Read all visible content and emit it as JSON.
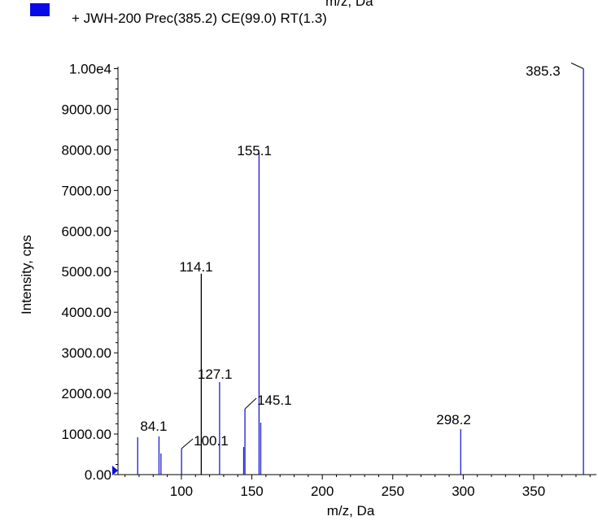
{
  "header": {
    "cut_top_text": "m/z, Da",
    "legend_label": "+ JWH-200 Prec(385.2) CE(99.0) RT(1.3)"
  },
  "colors": {
    "series": "#1c1cd0",
    "legend_swatch": "#0a0ae6",
    "axis": "#000000",
    "black_peak": "#000000",
    "marker": "#0a0ae6"
  },
  "chart_data": {
    "type": "bar",
    "title": "",
    "xlabel": "m/z, Da",
    "ylabel": "Intensity, cps",
    "xlim": [
      55,
      391
    ],
    "ylim": [
      0,
      10150
    ],
    "x_ticks": [
      {
        "value": 100,
        "label": "100"
      },
      {
        "value": 150,
        "label": "150"
      },
      {
        "value": 200,
        "label": "200"
      },
      {
        "value": 250,
        "label": "250"
      },
      {
        "value": 300,
        "label": "300"
      },
      {
        "value": 350,
        "label": "350"
      }
    ],
    "y_ticks": [
      {
        "value": 0,
        "label": "0.00"
      },
      {
        "value": 1000,
        "label": "1000.00"
      },
      {
        "value": 2000,
        "label": "2000.00"
      },
      {
        "value": 3000,
        "label": "3000.00"
      },
      {
        "value": 4000,
        "label": "4000.00"
      },
      {
        "value": 5000,
        "label": "5000.00"
      },
      {
        "value": 6000,
        "label": "6000.00"
      },
      {
        "value": 7000,
        "label": "7000.00"
      },
      {
        "value": 8000,
        "label": "8000.00"
      },
      {
        "value": 9000,
        "label": "9000.00"
      },
      {
        "value": 10000,
        "label": "1.00e4"
      }
    ],
    "series": [
      {
        "name": "+ JWH-200 Prec(385.2) CE(99.0) RT(1.3)",
        "peaks": [
          {
            "x": 69.0,
            "y": 920
          },
          {
            "x": 84.1,
            "y": 940
          },
          {
            "x": 85.5,
            "y": 520
          },
          {
            "x": 100.1,
            "y": 640
          },
          {
            "x": 114.1,
            "y": 4950,
            "color": "black"
          },
          {
            "x": 127.1,
            "y": 2280
          },
          {
            "x": 144.2,
            "y": 680
          },
          {
            "x": 145.1,
            "y": 1620
          },
          {
            "x": 155.1,
            "y": 7920
          },
          {
            "x": 156.3,
            "y": 1280
          },
          {
            "x": 298.2,
            "y": 1120
          },
          {
            "x": 385.3,
            "y": 10000
          }
        ]
      }
    ],
    "peak_labels": [
      {
        "text": "84.1",
        "peak_x": 84.1
      },
      {
        "text": "100.1",
        "peak_x": 100.1
      },
      {
        "text": "114.1",
        "peak_x": 114.1
      },
      {
        "text": "127.1",
        "peak_x": 127.1
      },
      {
        "text": "145.1",
        "peak_x": 145.1
      },
      {
        "text": "155.1",
        "peak_x": 155.1
      },
      {
        "text": "298.2",
        "peak_x": 298.2
      },
      {
        "text": "385.3",
        "peak_x": 385.3
      }
    ],
    "grid": false,
    "legend_position": "top-left"
  }
}
